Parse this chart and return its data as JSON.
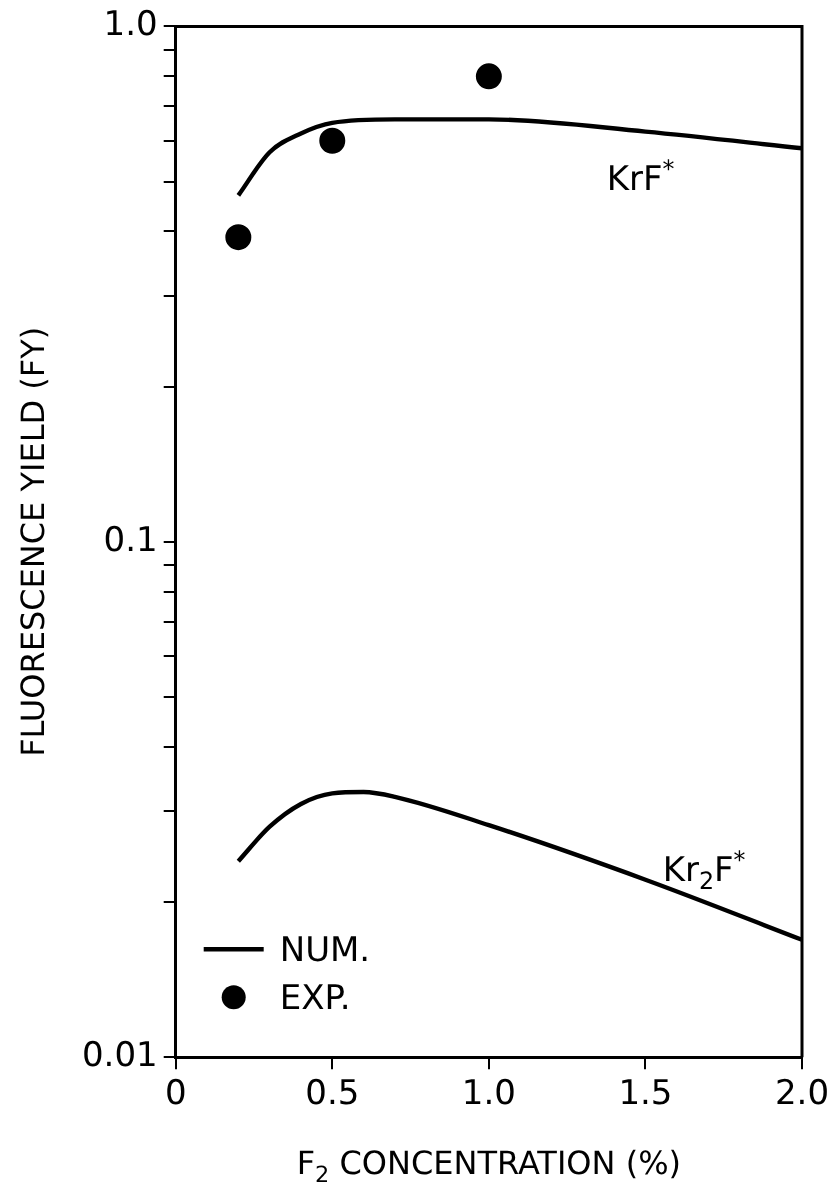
{
  "chart_data": {
    "type": "line",
    "xlabel": "F$_{2}$ CONCENTRATION (%)",
    "ylabel": "FLUORESCENCE YIELD (FY)",
    "series": [
      {
        "name": "NUM.",
        "marker": "none",
        "color": "#000000",
        "x": [
          0.2,
          0.3,
          0.4,
          0.5,
          0.7,
          1.0,
          1.5,
          2.0
        ],
        "values": [
          0.47,
          0.57,
          0.62,
          0.65,
          0.66,
          0.66,
          0.625,
          0.58
        ]
      },
      {
        "marker": "none",
        "color": "#000000",
        "x": [
          0.2,
          0.3,
          0.4,
          0.5,
          0.6,
          0.7,
          1.0,
          1.5,
          2.0
        ],
        "values": [
          0.024,
          0.028,
          0.031,
          0.0325,
          0.0327,
          0.032,
          0.0282,
          0.0221,
          0.0169
        ]
      },
      {
        "name": "EXP.",
        "type": "scatter",
        "marker": "circle",
        "color": "#000000",
        "x": [
          0.2,
          0.5,
          1.0
        ],
        "values": [
          0.39,
          0.6,
          0.8
        ]
      }
    ],
    "annotations": [
      "KrF$^{*}$",
      "Kr$_{2}$F$^{*}$"
    ],
    "log": "y",
    "line_style": "solid",
    "legend": "bottom left",
    "grid": false,
    "xlim": [
      0,
      2.0
    ],
    "xticks": [
      0,
      0.5,
      {
        "value": 1.0,
        "label": "1.0"
      },
      1.5,
      {
        "value": 2.0,
        "label": "2.0"
      }
    ],
    "ylim": [
      0.01,
      1.0
    ],
    "yticks": [
      0.01,
      {
        "value": 0.02,
        "label": null
      },
      {
        "value": 0.03,
        "label": null
      },
      {
        "value": 0.04,
        "label": null
      },
      {
        "value": 0.05,
        "label": null
      },
      {
        "value": 0.06,
        "label": null
      },
      {
        "value": 0.07,
        "label": null
      },
      {
        "value": 0.08,
        "label": null
      },
      {
        "value": 0.09,
        "label": null
      },
      0.1,
      {
        "value": 0.2,
        "label": null
      },
      {
        "value": 0.3,
        "label": null
      },
      {
        "value": 0.4,
        "label": null
      },
      {
        "value": 0.5,
        "label": null
      },
      {
        "value": 0.6,
        "label": null
      },
      {
        "value": 0.7,
        "label": null
      },
      {
        "value": 0.8,
        "label": null
      },
      {
        "value": 0.9,
        "label": null
      },
      {
        "value": 1.0,
        "label": "1.0"
      }
    ]
  }
}
